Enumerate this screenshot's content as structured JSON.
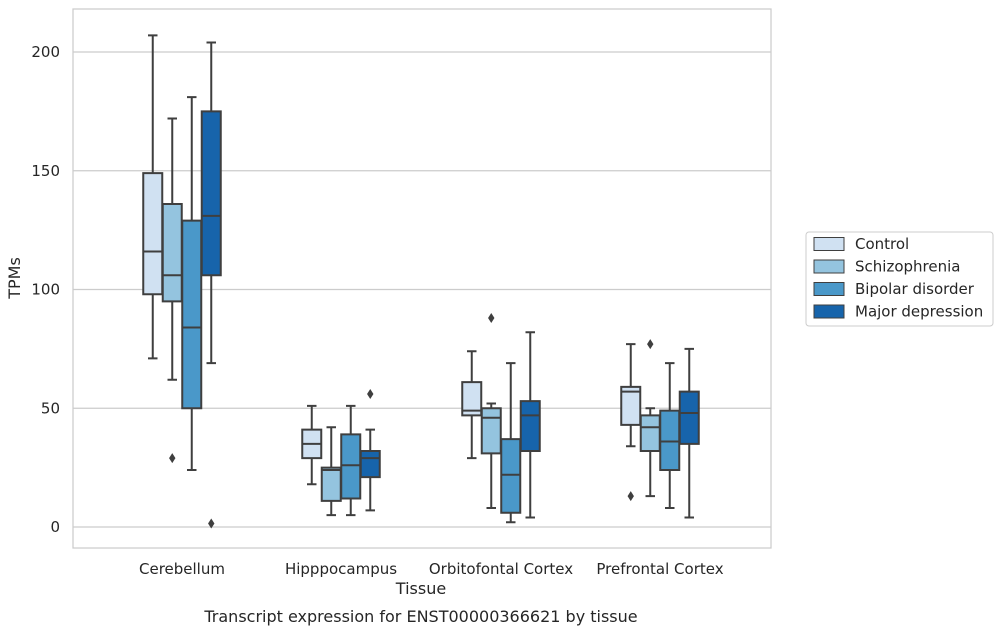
{
  "chart_data": {
    "type": "box",
    "caption": "Transcript expression for ENST00000366621 by tissue",
    "xlabel": "Tissue",
    "ylabel": "TPMs",
    "ylim": [
      -8,
      218
    ],
    "yticks": [
      0,
      50,
      100,
      150,
      200
    ],
    "grid": true,
    "legend_position": "right, outside plot",
    "categories": [
      "Cerebellum",
      "Hipppocampus",
      "Orbitofontal Cortex",
      "Prefrontal Cortex"
    ],
    "series": [
      {
        "name": "Control",
        "color": "#d0e1f2",
        "boxes": [
          {
            "whislo": 71,
            "q1": 98,
            "med": 116,
            "q3": 149,
            "whishi": 207,
            "fliers": []
          },
          {
            "whislo": 18,
            "q1": 29,
            "med": 35,
            "q3": 41,
            "whishi": 51,
            "fliers": []
          },
          {
            "whislo": 29,
            "q1": 47,
            "med": 49,
            "q3": 61,
            "whishi": 74,
            "fliers": []
          },
          {
            "whislo": 34,
            "q1": 43,
            "med": 57,
            "q3": 59,
            "whishi": 77,
            "fliers": [
              13
            ]
          }
        ]
      },
      {
        "name": "Schizophrenia",
        "color": "#94c4df",
        "boxes": [
          {
            "whislo": 62,
            "q1": 95,
            "med": 106,
            "q3": 136,
            "whishi": 172,
            "fliers": [
              29
            ]
          },
          {
            "whislo": 5,
            "q1": 11,
            "med": 24,
            "q3": 25,
            "whishi": 42,
            "fliers": []
          },
          {
            "whislo": 8,
            "q1": 31,
            "med": 46,
            "q3": 50,
            "whishi": 52,
            "fliers": [
              88
            ]
          },
          {
            "whislo": 13,
            "q1": 32,
            "med": 42,
            "q3": 47,
            "whishi": 50,
            "fliers": [
              77
            ]
          }
        ]
      },
      {
        "name": "Bipolar disorder",
        "color": "#4a98c9",
        "boxes": [
          {
            "whislo": 24,
            "q1": 50,
            "med": 84,
            "q3": 129,
            "whishi": 181,
            "fliers": []
          },
          {
            "whislo": 5,
            "q1": 12,
            "med": 26,
            "q3": 39,
            "whishi": 51,
            "fliers": []
          },
          {
            "whislo": 2,
            "q1": 6,
            "med": 22,
            "q3": 37,
            "whishi": 69,
            "fliers": []
          },
          {
            "whislo": 8,
            "q1": 24,
            "med": 36,
            "q3": 49,
            "whishi": 69,
            "fliers": []
          }
        ]
      },
      {
        "name": "Major depression",
        "color": "#1764ab",
        "boxes": [
          {
            "whislo": 69,
            "q1": 106,
            "med": 131,
            "q3": 175,
            "whishi": 204,
            "fliers": [
              1.5
            ]
          },
          {
            "whislo": 7,
            "q1": 21,
            "med": 29,
            "q3": 32,
            "whishi": 41,
            "fliers": [
              56
            ]
          },
          {
            "whislo": 4,
            "q1": 32,
            "med": 47,
            "q3": 53,
            "whishi": 82,
            "fliers": []
          },
          {
            "whislo": 4,
            "q1": 35,
            "med": 48,
            "q3": 57,
            "whishi": 75,
            "fliers": []
          }
        ]
      }
    ]
  }
}
